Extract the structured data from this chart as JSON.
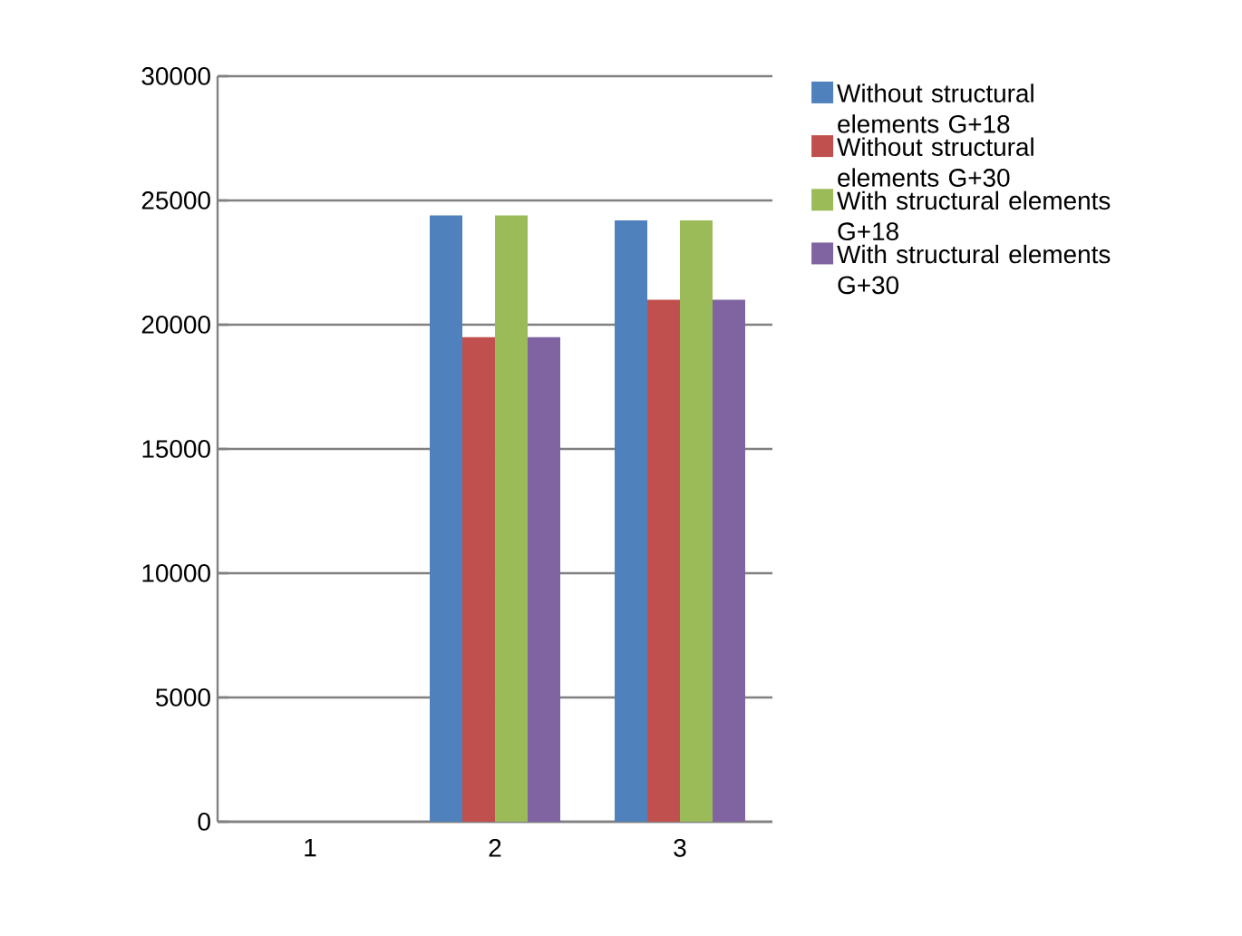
{
  "chart_data": {
    "type": "bar",
    "categories": [
      "1",
      "2",
      "3"
    ],
    "series": [
      {
        "name": "Without structural elements G+18",
        "color": "#4f81bd",
        "values": [
          null,
          24400,
          24200
        ]
      },
      {
        "name": "Without structural elements G+30",
        "color": "#c0504d",
        "values": [
          null,
          19500,
          21000
        ]
      },
      {
        "name": "With structural elements G+18",
        "color": "#9bbb59",
        "values": [
          null,
          24400,
          24200
        ]
      },
      {
        "name": "With structural elements G+30",
        "color": "#8064a2",
        "values": [
          null,
          19500,
          21000
        ]
      }
    ],
    "ylim": [
      0,
      30000
    ],
    "yticks": [
      0,
      5000,
      10000,
      15000,
      20000,
      25000,
      30000
    ],
    "grid": "y",
    "legend": "right"
  }
}
